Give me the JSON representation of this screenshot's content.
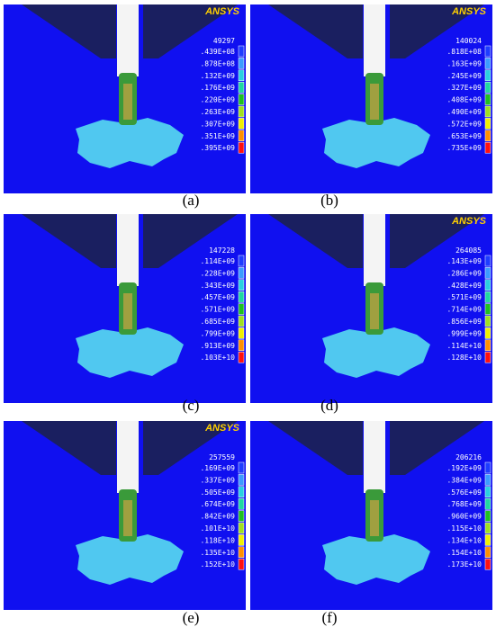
{
  "panels": [
    {
      "label": "(a)",
      "logo": "ANSYS",
      "header": "49297",
      "legend": [
        ".439E+08",
        ".878E+08",
        ".132E+09",
        ".176E+09",
        ".220E+09",
        ".263E+09",
        ".307E+09",
        ".351E+09",
        ".395E+09"
      ]
    },
    {
      "label": "(b)",
      "logo": "ANSYS",
      "header": "140024",
      "legend": [
        ".818E+08",
        ".163E+09",
        ".245E+09",
        ".327E+09",
        ".408E+09",
        ".490E+09",
        ".572E+09",
        ".653E+09",
        ".735E+09"
      ]
    },
    {
      "label": "(c)",
      "header": "147228",
      "legend": [
        ".114E+09",
        ".228E+09",
        ".343E+09",
        ".457E+09",
        ".571E+09",
        ".685E+09",
        ".799E+09",
        ".913E+09",
        ".103E+10"
      ]
    },
    {
      "label": "(d)",
      "logo": "ANSYS",
      "header": "264085",
      "legend": [
        ".143E+09",
        ".286E+09",
        ".428E+09",
        ".571E+09",
        ".714E+09",
        ".856E+09",
        ".999E+09",
        ".114E+10",
        ".128E+10"
      ]
    },
    {
      "label": "(e)",
      "logo": "ANSYS",
      "header": "257559",
      "legend": [
        ".169E+09",
        ".337E+09",
        ".505E+09",
        ".674E+09",
        ".842E+09",
        ".101E+10",
        ".118E+10",
        ".135E+10",
        ".152E+10"
      ]
    },
    {
      "label": "(f)",
      "header": "206216",
      "legend": [
        ".192E+09",
        ".384E+09",
        ".576E+09",
        ".768E+09",
        ".960E+09",
        ".115E+10",
        ".134E+10",
        ".154E+10",
        ".173E+10"
      ]
    }
  ]
}
